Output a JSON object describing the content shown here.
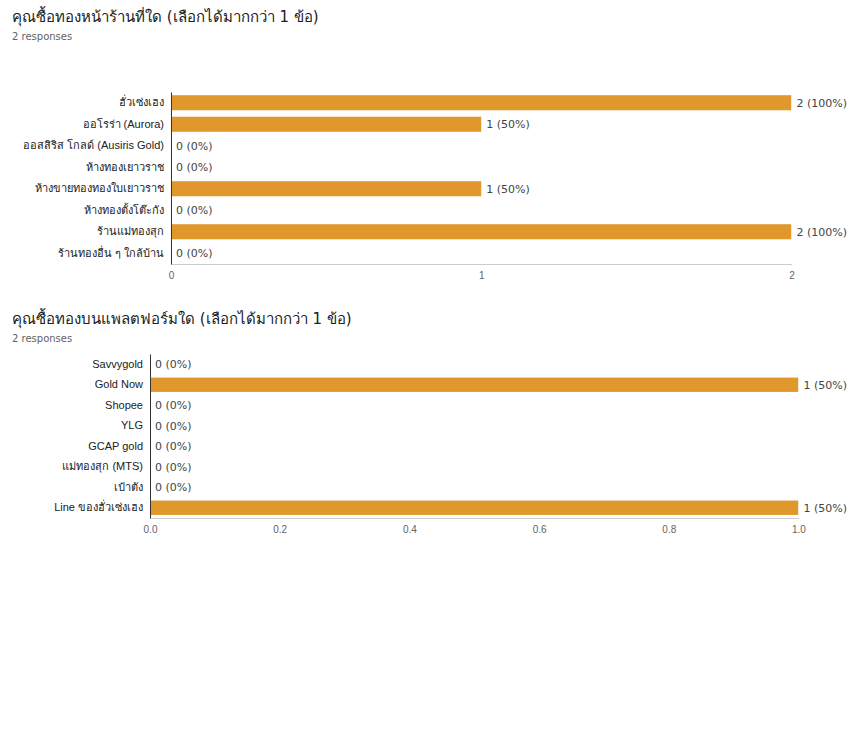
{
  "chart_data": [
    {
      "type": "bar",
      "orientation": "horizontal",
      "title": "คุณซื้อทองหน้าร้านที่ใด (เลือกได้มากกว่า 1 ข้อ)",
      "subtitle": "2 responses",
      "categories": [
        "ฮั่วเซ่งเฮง",
        "ออโรร่า (Aurora)",
        "ออสสิริส โกลด์ (Ausiris Gold)",
        "ห้างทองเยาวราช",
        "ห้างขายทองทองใบเยาวราช",
        "ห้างทองตั้งโต๊ะกัง",
        "ร้านแม่ทองสุก",
        "ร้านทองอื่น ๆ ใกล้บ้าน"
      ],
      "values": [
        2,
        1,
        0,
        0,
        1,
        0,
        2,
        0
      ],
      "value_labels": [
        "2 (100%)",
        "1 (50%)",
        "0 (0%)",
        "0 (0%)",
        "1 (50%)",
        "0 (0%)",
        "2 (100%)",
        "0 (0%)"
      ],
      "color": "#e0972b",
      "xlim": [
        0,
        2
      ],
      "xticks": [
        0,
        1,
        2
      ],
      "grid": false,
      "data_labels": true
    },
    {
      "type": "bar",
      "orientation": "horizontal",
      "title": "คุณซื้อทองบนแพลตฟอร์มใด (เลือกได้มากกว่า 1 ข้อ)",
      "subtitle": "2 responses",
      "categories": [
        "Savvygold",
        "Gold Now",
        "Shopee",
        "YLG",
        "GCAP gold",
        "แม่ทองสุก (MTS)",
        "เป๋าตัง",
        "Line ของฮั่วเซ่งเฮง"
      ],
      "values": [
        0,
        1,
        0,
        0,
        0,
        0,
        0,
        1
      ],
      "value_labels": [
        "0 (0%)",
        "1 (50%)",
        "0 (0%)",
        "0 (0%)",
        "0 (0%)",
        "0 (0%)",
        "0 (0%)",
        "1 (50%)"
      ],
      "color": "#e0972b",
      "xlim": [
        0,
        1
      ],
      "xticks": [
        {
          "value": 0,
          "label": "0.0"
        },
        0.2,
        0.4,
        0.6,
        0.8,
        {
          "value": 1,
          "label": "1.0"
        }
      ],
      "grid": false,
      "data_labels": true
    }
  ]
}
